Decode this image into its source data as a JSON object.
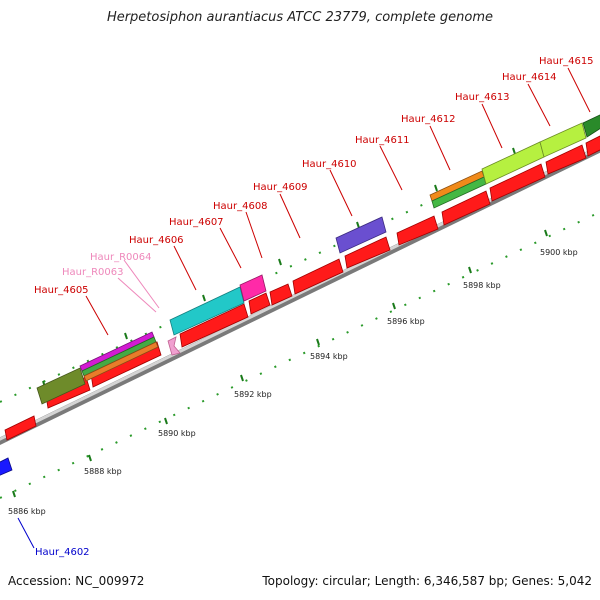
{
  "title": "Herpetosiphon aurantiacus ATCC 23779, complete genome",
  "accession": "Accession: NC_009972",
  "summary": "Topology: circular; Length: 6,346,587 bp; Genes: 5,042",
  "colors": {
    "gene_label": "#cc0000",
    "rna_label": "#ee88bb",
    "blue_label": "#0000cc",
    "backbone": "#bdbdbd",
    "cds": "#ff1111",
    "tick": "#229922"
  },
  "scale": {
    "unit": "kbp",
    "ticks": [
      "5886 kbp",
      "5888 kbp",
      "5890 kbp",
      "5892 kbp",
      "5894 kbp",
      "5896 kbp",
      "5898 kbp",
      "5900 kbp"
    ]
  },
  "gene_labels": [
    {
      "text": "Haur_4602",
      "kind": "blue"
    },
    {
      "text": "Haur_4605",
      "kind": "gene"
    },
    {
      "text": "Haur_R0063",
      "kind": "rna"
    },
    {
      "text": "Haur_R0064",
      "kind": "rna"
    },
    {
      "text": "Haur_4606",
      "kind": "gene"
    },
    {
      "text": "Haur_4607",
      "kind": "gene"
    },
    {
      "text": "Haur_4608",
      "kind": "gene"
    },
    {
      "text": "Haur_4609",
      "kind": "gene"
    },
    {
      "text": "Haur_4610",
      "kind": "gene"
    },
    {
      "text": "Haur_4611",
      "kind": "gene"
    },
    {
      "text": "Haur_4612",
      "kind": "gene"
    },
    {
      "text": "Haur_4613",
      "kind": "gene"
    },
    {
      "text": "Haur_4614",
      "kind": "gene"
    },
    {
      "text": "Haur_4615",
      "kind": "gene"
    }
  ]
}
